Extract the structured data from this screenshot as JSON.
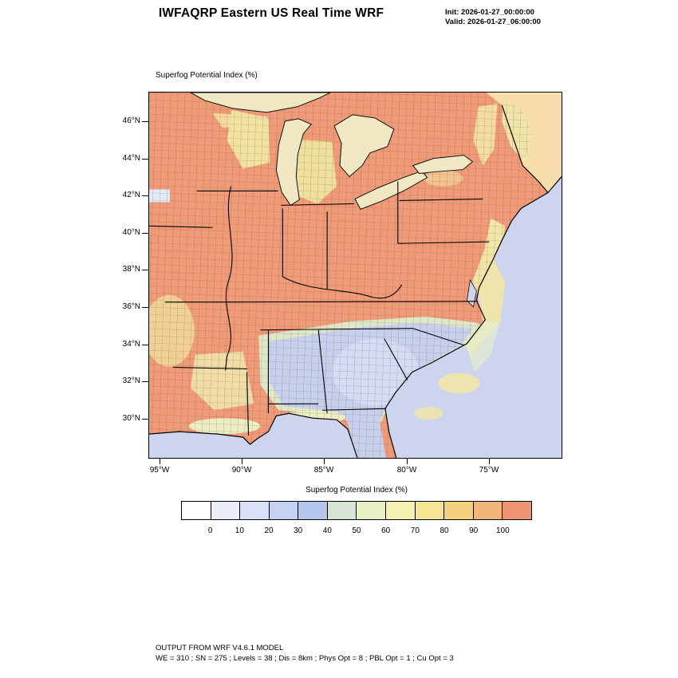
{
  "header": {
    "title": "IWFAQRP Eastern US Real Time WRF",
    "init_label": "Init: 2026-01-27_00:00:00",
    "valid_label": "Valid: 2026-01-27_06:00:00"
  },
  "map": {
    "field_label": "Superfog Potential Index   (%)",
    "lat_ticks": [
      "46°N",
      "44°N",
      "42°N",
      "40°N",
      "38°N",
      "36°N",
      "34°N",
      "32°N",
      "30°N"
    ],
    "lon_ticks": [
      "95°W",
      "90°W",
      "85°W",
      "80°W",
      "75°W"
    ]
  },
  "colorbar": {
    "title": "Superfog Potential Index   (%)",
    "tick_labels": [
      "0",
      "10",
      "20",
      "30",
      "40",
      "50",
      "60",
      "70",
      "80",
      "90",
      "100"
    ],
    "colors": [
      "#ffffff",
      "#e9eef9",
      "#d7e0f6",
      "#c5d2f1",
      "#b4c5ec",
      "#d6e4d4",
      "#e6efc5",
      "#f4f0b2",
      "#f6e492",
      "#f3d07e",
      "#f0b67a",
      "#ee9470"
    ],
    "units": "%"
  },
  "footer": {
    "line1": "OUTPUT FROM WRF V4.6.1 MODEL",
    "line2": "WE = 310 ; SN = 275 ; Levels = 38 ; Dis = 8km ; Phys Opt = 8 ; PBL Opt = 1 ; Cu Opt = 3"
  }
}
